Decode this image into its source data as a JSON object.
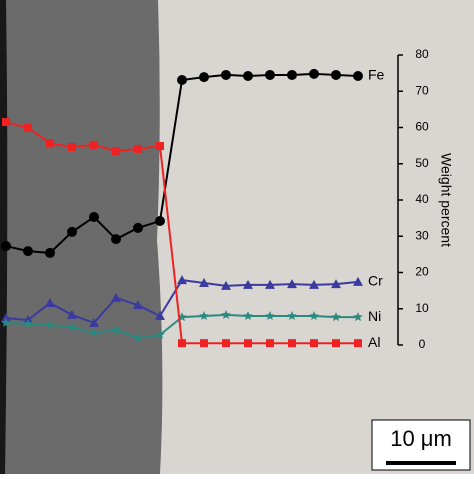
{
  "chart_data": {
    "type": "line",
    "ylabel": "Weight percent",
    "categories": [
      null,
      null,
      null,
      null,
      null,
      null,
      null,
      null,
      null,
      null,
      null,
      null,
      null,
      null,
      null,
      null,
      null
    ],
    "series": [
      {
        "name": "Fe",
        "color": "#000000",
        "marker": "circle",
        "values": [
          27.3,
          25.9,
          25.4,
          31.2,
          35.3,
          29.2,
          32.3,
          34.2,
          73.1,
          73.9,
          74.5,
          74.2,
          74.5,
          74.5,
          74.8,
          74.5,
          74.2
        ]
      },
      {
        "name": "Cr",
        "color": "#3a3aa0",
        "marker": "triangle",
        "values": [
          7.4,
          6.9,
          11.6,
          8.3,
          6.1,
          13.0,
          11.0,
          8.0,
          17.9,
          17.1,
          16.3,
          16.6,
          16.6,
          16.8,
          16.6,
          16.8,
          17.4
        ]
      },
      {
        "name": "Ni",
        "color": "#2a8a80",
        "marker": "star",
        "values": [
          6.1,
          5.8,
          5.5,
          5.0,
          3.3,
          4.1,
          1.9,
          2.8,
          7.7,
          8.0,
          8.3,
          8.0,
          8.0,
          8.0,
          8.0,
          7.7,
          7.7
        ]
      },
      {
        "name": "Al",
        "color": "#ee2222",
        "marker": "square",
        "values": [
          61.5,
          59.9,
          55.7,
          54.6,
          55.2,
          53.5,
          54.1,
          54.9,
          0.5,
          0.5,
          0.5,
          0.5,
          0.5,
          0.5,
          0.5,
          0.5,
          0.5
        ]
      }
    ],
    "ylim": [
      0,
      80
    ],
    "yticks": [
      0,
      10,
      20,
      30,
      40,
      50,
      60,
      70,
      80
    ],
    "annotations": [
      "10 μm"
    ]
  }
}
